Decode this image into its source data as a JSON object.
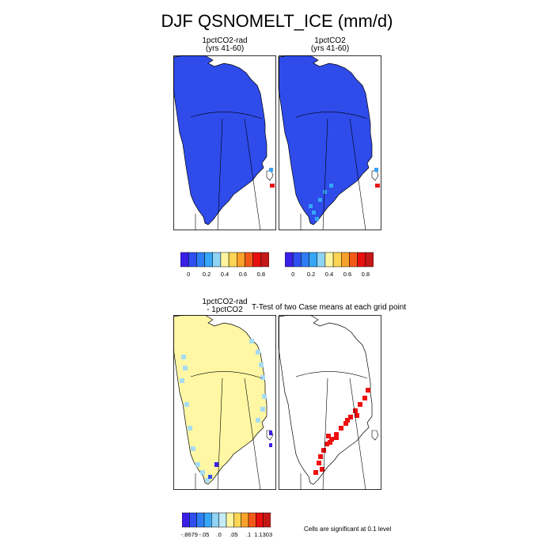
{
  "figure": {
    "title": "DJF QSNOMELT_ICE (mm/d)",
    "panels": {
      "top_left": {
        "title_line1": "1pctCO2-rad",
        "title_line2": "(yrs 41-60)"
      },
      "top_right": {
        "title_line1": "1pctCO2",
        "title_line2": "(yrs 41-60)"
      },
      "bottom_left": {
        "title_line1": "1pctCO2-rad",
        "title_line2": "- 1pctCO2"
      },
      "bottom_right": {
        "title": "T-Test of two Case means at each grid point"
      }
    },
    "significance_note": "Cells are significant at 0.1 level",
    "colorbar_top": {
      "labels": [
        "0",
        "0.2",
        "0.4",
        "0.6",
        "0.8"
      ],
      "colors": [
        "#3a1fe6",
        "#2f4ff0",
        "#2f7df5",
        "#36a6f7",
        "#8fd3f5",
        "#fff5a0",
        "#fbd553",
        "#f9a12a",
        "#f45a17",
        "#e80f0f",
        "#c41818"
      ]
    },
    "colorbar_bottom": {
      "labels": [
        "-.8679",
        "-.05",
        ".0",
        ".05",
        ".1",
        "1.1303"
      ],
      "colors": [
        "#3a1fe6",
        "#2f4ff0",
        "#2f7df5",
        "#36a6f7",
        "#8fd3f5",
        "#c5ecf6",
        "#fff5a0",
        "#fbd553",
        "#f9a12a",
        "#f45a17",
        "#e80f0f",
        "#c41818"
      ]
    },
    "field_colors": {
      "snowmelt_fill": "#2f4bea",
      "difference_fill": "#fff7a4",
      "difference_edge": "#a8dcf2",
      "significant": "#ee0f0f"
    }
  }
}
